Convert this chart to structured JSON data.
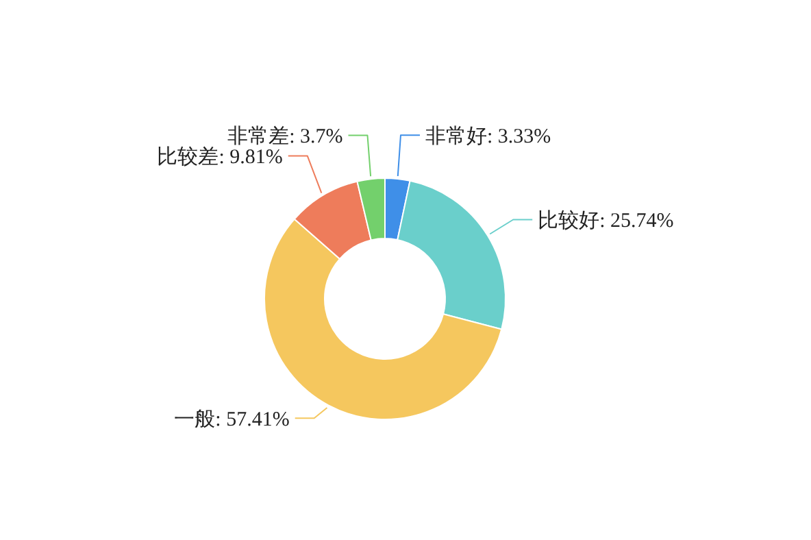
{
  "chart_data": {
    "type": "donut",
    "categories": [
      "非常好",
      "比较好",
      "一般",
      "比较差",
      "非常差"
    ],
    "values": [
      3.33,
      25.74,
      57.41,
      9.81,
      3.7
    ],
    "value_labels": [
      "3.33%",
      "25.74%",
      "57.41%",
      "9.81%",
      "3.7%"
    ],
    "colors": [
      "#3f8fe8",
      "#6acfcb",
      "#f5c75e",
      "#ee7c5b",
      "#73d06c"
    ]
  }
}
